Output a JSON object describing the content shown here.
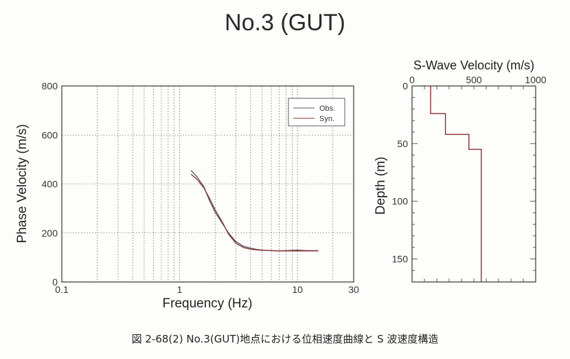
{
  "title": "No.3 (GUT)",
  "caption": "図 2-68(2) No.3(GUT)地点における位相速度曲線と S 波速度構造",
  "chart_data": [
    {
      "type": "line",
      "xlabel": "Frequency (Hz)",
      "ylabel": "Phase Velocity (m/s)",
      "xscale": "log",
      "xlim": [
        0.1,
        30
      ],
      "ylim": [
        0,
        800
      ],
      "xticks": [
        "0.1",
        "1",
        "10",
        "30"
      ],
      "yticks": [
        "0",
        "200",
        "400",
        "600",
        "800"
      ],
      "grid": true,
      "legend": "top-right",
      "series": [
        {
          "name": "Obs.",
          "color": "#555555",
          "x": [
            1.25,
            1.4,
            1.6,
            1.8,
            2.0,
            2.3,
            2.6,
            3.0,
            3.5,
            4.0,
            4.5,
            5.0,
            6.0,
            7.0,
            8.0,
            10.0,
            12.0,
            15.0
          ],
          "y": [
            455,
            430,
            390,
            330,
            285,
            240,
            200,
            165,
            145,
            138,
            133,
            130,
            128,
            127,
            128,
            130,
            128,
            128
          ]
        },
        {
          "name": "Syn.",
          "color": "#8b2d2d",
          "x": [
            1.25,
            1.4,
            1.6,
            1.8,
            2.0,
            2.3,
            2.6,
            3.0,
            3.5,
            4.0,
            4.5,
            5.0,
            6.0,
            7.0,
            8.0,
            10.0,
            12.0,
            15.0
          ],
          "y": [
            440,
            420,
            385,
            340,
            295,
            245,
            195,
            158,
            140,
            134,
            131,
            129,
            128,
            127,
            127,
            127,
            127,
            127
          ]
        }
      ]
    },
    {
      "type": "line",
      "title": "S-Wave Velocity (m/s)",
      "ylabel": "Depth (m)",
      "xlim": [
        0,
        1000
      ],
      "ylim": [
        0,
        170
      ],
      "yinverted": true,
      "xticks": [
        "0",
        "500",
        "1000"
      ],
      "yticks": [
        "0",
        "50",
        "100",
        "150"
      ],
      "series": [
        {
          "color": "#8b2d2d",
          "velocity": [
            150,
            270,
            460,
            560
          ],
          "top_depth": [
            0,
            24,
            42,
            55
          ],
          "bottom_depth": [
            24,
            42,
            55,
            170
          ]
        }
      ]
    }
  ]
}
